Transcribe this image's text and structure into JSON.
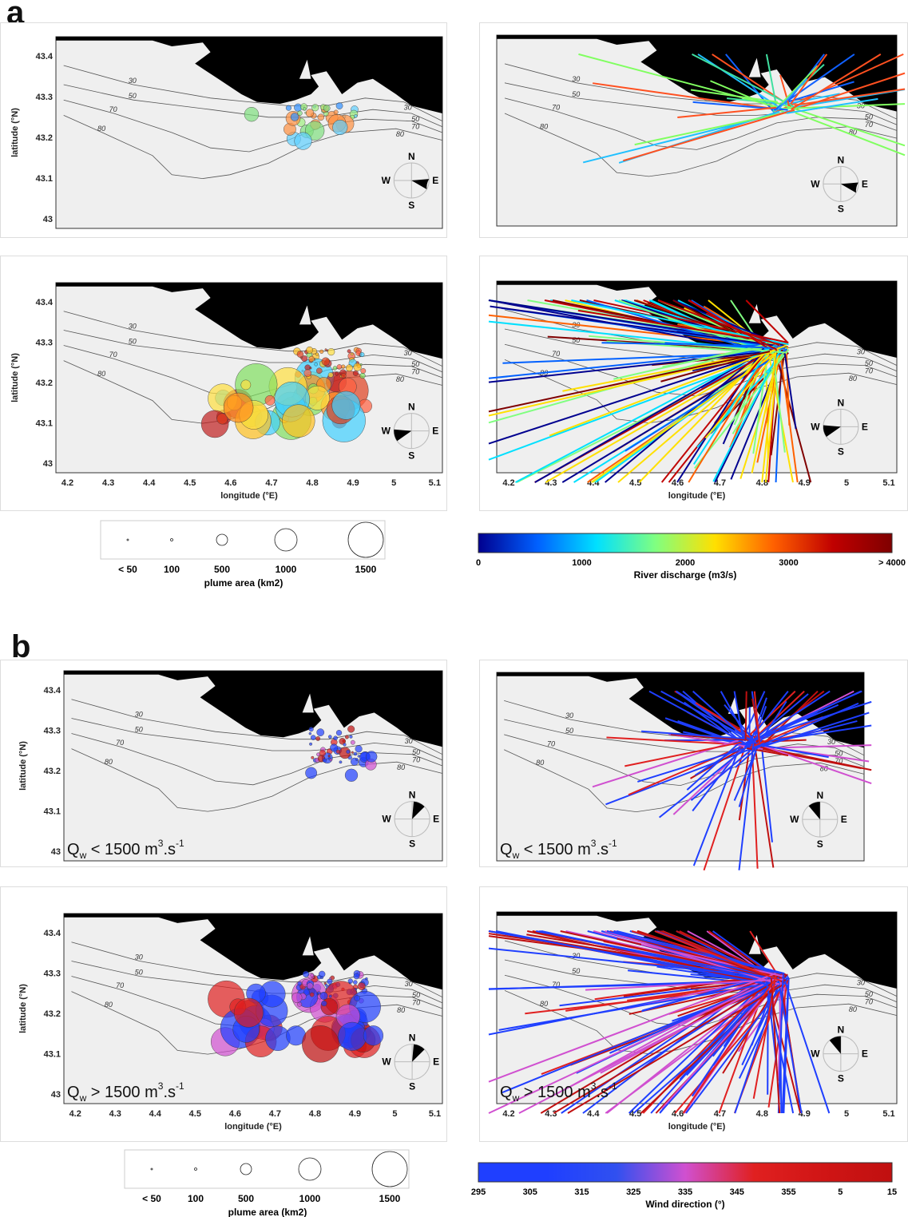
{
  "panel_labels": {
    "a": "a",
    "b": "b"
  },
  "axes": {
    "ylabel": "latitude (°N)",
    "xlabel": "longitude (°E)",
    "yticks": [
      "43.4",
      "43.3",
      "43.2",
      "43.1",
      "43"
    ],
    "xticks": [
      "4.2",
      "4.3",
      "4.4",
      "4.5",
      "4.6",
      "4.7",
      "4.8",
      "4.9",
      "5",
      "5.1"
    ]
  },
  "compass": {
    "n": "N",
    "e": "E",
    "s": "S",
    "w": "W"
  },
  "isobaths": [
    "30",
    "50",
    "70",
    "80"
  ],
  "condition_labels": {
    "low": {
      "prefix": "Q",
      "sub": "w",
      "rest": " < 1500 m",
      "sup": "3",
      "tail": ".s",
      "sup2": "-1"
    },
    "high": {
      "prefix": "Q",
      "sub": "w",
      "rest": " > 1500 m",
      "sup": "3",
      "tail": ".s",
      "sup2": "-1"
    }
  },
  "size_legend": {
    "title": "plume area (km2)",
    "labels": [
      "< 50",
      "100",
      "500",
      "1000",
      "1500"
    ]
  },
  "discharge_colorbar": {
    "title": "River discharge (m3/s)",
    "ticks": [
      "0",
      "1000",
      "2000",
      "3000",
      "> 4000"
    ],
    "colors": [
      "#00008f",
      "#0060ff",
      "#00e0ff",
      "#80ff80",
      "#ffe000",
      "#ff6000",
      "#c00000",
      "#7f0000"
    ]
  },
  "wind_colorbar": {
    "title": "Wind direction (°)",
    "ticks": [
      "295",
      "305",
      "315",
      "325",
      "335",
      "345",
      "355",
      "5",
      "15"
    ],
    "colors": [
      "#1f3fff",
      "#1f3fff",
      "#3050f0",
      "#d050d0",
      "#e02020",
      "#d01515",
      "#c01010"
    ]
  },
  "colors": {
    "land": "#000000",
    "sea": "#efefef",
    "isobath": "#555555"
  }
}
